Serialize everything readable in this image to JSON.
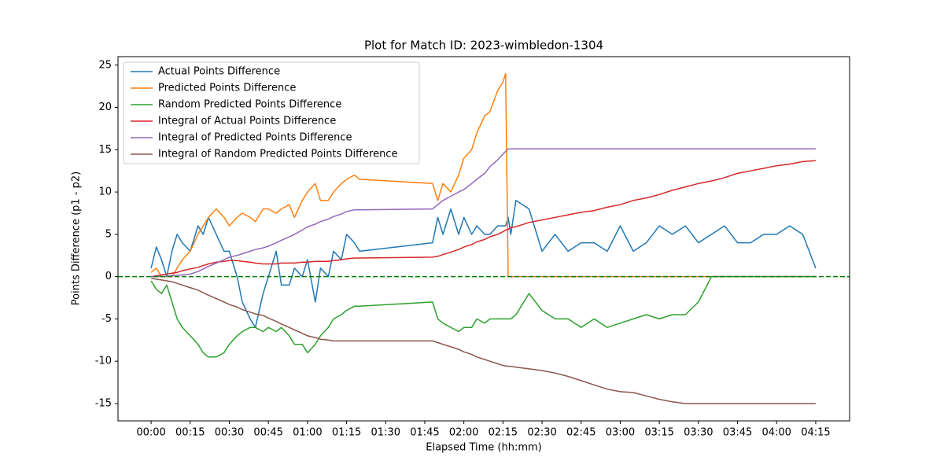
{
  "chart_data": {
    "type": "line",
    "title": "Plot for Match ID: 2023-wimbledon-1304",
    "x_label": "Elapsed Time (hh:mm)",
    "y_label": "Points Difference (p1 - p2)",
    "x": [
      0,
      2,
      4,
      6,
      8,
      10,
      12,
      15,
      18,
      20,
      22,
      25,
      28,
      30,
      33,
      35,
      38,
      40,
      43,
      45,
      48,
      50,
      53,
      55,
      58,
      60,
      63,
      65,
      68,
      70,
      73,
      75,
      78,
      80,
      108,
      110,
      112,
      115,
      118,
      120,
      123,
      125,
      128,
      130,
      133,
      135,
      136,
      137,
      138,
      140,
      145,
      150,
      155,
      160,
      165,
      170,
      175,
      180,
      185,
      190,
      195,
      200,
      205,
      210,
      215,
      220,
      225,
      230,
      235,
      240,
      245,
      250,
      255
    ],
    "series": [
      {
        "name": "Actual Points Difference",
        "color": "#1f77b4",
        "values": [
          1,
          3.5,
          2,
          0,
          3,
          5,
          4,
          3,
          6,
          5,
          7,
          5,
          3,
          3,
          0,
          -3,
          -5,
          -6,
          -2,
          0,
          3,
          -1,
          -1,
          1,
          0,
          2,
          -3,
          1,
          0,
          3,
          2,
          5,
          4,
          3,
          4,
          7,
          5,
          8,
          5,
          7,
          5,
          6,
          5,
          5,
          6,
          6,
          6,
          7,
          5,
          9,
          8,
          3,
          5,
          3,
          4,
          4,
          3,
          6,
          3,
          4,
          6,
          5,
          6,
          4,
          5,
          6,
          4,
          4,
          5,
          5,
          6,
          5,
          1
        ]
      },
      {
        "name": "Predicted Points Difference",
        "color": "#ff7f0e",
        "values": [
          0.5,
          1,
          0,
          0,
          0,
          1,
          2,
          3,
          5,
          6,
          7,
          8,
          7,
          6,
          7,
          7.5,
          7,
          6.5,
          8,
          8,
          7.5,
          8,
          8.5,
          7,
          9,
          10,
          11,
          9,
          9,
          10,
          11,
          11.5,
          12,
          11.5,
          11,
          9,
          11,
          10,
          12,
          14,
          15,
          17,
          19,
          19.5,
          22,
          23,
          24,
          0,
          0,
          0,
          0,
          0,
          0,
          0,
          0,
          0,
          0,
          0,
          0,
          0,
          0,
          0,
          0,
          0,
          0,
          0,
          0,
          0,
          0,
          0,
          0,
          0,
          0
        ]
      },
      {
        "name": "Random Predicted Points Difference",
        "color": "#2ca02c",
        "values": [
          -0.5,
          -1.5,
          -2,
          -1,
          -3,
          -5,
          -6,
          -7,
          -8,
          -9,
          -9.5,
          -9.5,
          -9,
          -8,
          -7,
          -6.5,
          -6,
          -6,
          -6.5,
          -6,
          -6.5,
          -6,
          -7,
          -8,
          -8,
          -9,
          -8,
          -7,
          -6,
          -5,
          -4.5,
          -4,
          -3.5,
          -3.5,
          -3,
          -5,
          -5.5,
          -6,
          -6.5,
          -6,
          -6,
          -5,
          -5.5,
          -5,
          -5,
          -5,
          -5,
          -5,
          -5,
          -4.5,
          -2,
          -4,
          -5,
          -5,
          -6,
          -5,
          -6,
          -5.5,
          -5,
          -4.5,
          -5,
          -4.5,
          -4.5,
          -3,
          0,
          0,
          0,
          0,
          0,
          0,
          0,
          0,
          0
        ]
      },
      {
        "name": "Integral of Actual Points Difference",
        "color": "#d62728",
        "values": [
          0,
          0.1,
          0.2,
          0.3,
          0.4,
          0.5,
          0.7,
          0.9,
          1.1,
          1.3,
          1.5,
          1.7,
          1.8,
          1.9,
          1.9,
          1.8,
          1.7,
          1.6,
          1.5,
          1.5,
          1.5,
          1.6,
          1.6,
          1.6,
          1.7,
          1.7,
          1.8,
          1.8,
          1.8,
          1.9,
          2,
          2.1,
          2.2,
          2.2,
          2.3,
          2.4,
          2.6,
          2.9,
          3.2,
          3.5,
          3.8,
          4.1,
          4.4,
          4.7,
          5,
          5.3,
          5.5,
          5.6,
          5.8,
          5.9,
          6.4,
          6.7,
          7,
          7.3,
          7.6,
          7.8,
          8.2,
          8.5,
          9,
          9.3,
          9.7,
          10.2,
          10.6,
          11,
          11.3,
          11.7,
          12.2,
          12.5,
          12.8,
          13.1,
          13.3,
          13.6,
          13.7
        ]
      },
      {
        "name": "Integral of Predicted Points Difference",
        "color": "#9467bd",
        "values": [
          0,
          0,
          0,
          0.05,
          0.1,
          0.15,
          0.2,
          0.3,
          0.6,
          0.9,
          1.2,
          1.6,
          2,
          2.3,
          2.5,
          2.7,
          3,
          3.2,
          3.4,
          3.6,
          4,
          4.3,
          4.7,
          5,
          5.5,
          5.9,
          6.2,
          6.5,
          6.8,
          7.1,
          7.4,
          7.7,
          7.9,
          7.9,
          8,
          8.5,
          9,
          9.5,
          10,
          10.3,
          11,
          11.5,
          12.2,
          13,
          13.8,
          14.5,
          14.8,
          15.1,
          15.1,
          15.1,
          15.1,
          15.1,
          15.1,
          15.1,
          15.1,
          15.1,
          15.1,
          15.1,
          15.1,
          15.1,
          15.1,
          15.1,
          15.1,
          15.1,
          15.1,
          15.1,
          15.1,
          15.1,
          15.1,
          15.1,
          15.1,
          15.1,
          15.1
        ]
      },
      {
        "name": "Integral of Random Predicted Points Difference",
        "color": "#8c564b",
        "values": [
          -0.2,
          -0.3,
          -0.4,
          -0.5,
          -0.6,
          -0.8,
          -1,
          -1.3,
          -1.6,
          -1.9,
          -2.2,
          -2.6,
          -3,
          -3.3,
          -3.6,
          -3.9,
          -4.2,
          -4.4,
          -4.6,
          -4.9,
          -5.3,
          -5.6,
          -6,
          -6.3,
          -6.7,
          -7,
          -7.2,
          -7.4,
          -7.5,
          -7.6,
          -7.6,
          -7.6,
          -7.6,
          -7.6,
          -7.6,
          -7.8,
          -8,
          -8.3,
          -8.6,
          -8.9,
          -9.2,
          -9.5,
          -9.8,
          -10,
          -10.3,
          -10.5,
          -10.55,
          -10.6,
          -10.6,
          -10.7,
          -10.9,
          -11.1,
          -11.4,
          -11.8,
          -12.3,
          -12.8,
          -13.3,
          -13.6,
          -13.7,
          -14.1,
          -14.5,
          -14.8,
          -15,
          -15,
          -15,
          -15,
          -15,
          -15,
          -15,
          -15,
          -15,
          -15,
          -15
        ]
      }
    ],
    "reference_line": {
      "value": 0,
      "color": "green",
      "style": "dashed"
    },
    "xlim": [
      -12.7,
      268
    ],
    "ylim": [
      -17.05,
      26.0
    ],
    "xticks": [
      {
        "value": 0,
        "label": "00:00"
      },
      {
        "value": 15,
        "label": "00:15"
      },
      {
        "value": 30,
        "label": "00:30"
      },
      {
        "value": 45,
        "label": "00:45"
      },
      {
        "value": 60,
        "label": "01:00"
      },
      {
        "value": 75,
        "label": "01:15"
      },
      {
        "value": 90,
        "label": "01:30"
      },
      {
        "value": 105,
        "label": "01:45"
      },
      {
        "value": 120,
        "label": "02:00"
      },
      {
        "value": 135,
        "label": "02:15"
      },
      {
        "value": 150,
        "label": "02:30"
      },
      {
        "value": 165,
        "label": "02:45"
      },
      {
        "value": 180,
        "label": "03:00"
      },
      {
        "value": 195,
        "label": "03:15"
      },
      {
        "value": 210,
        "label": "03:30"
      },
      {
        "value": 225,
        "label": "03:45"
      },
      {
        "value": 240,
        "label": "04:00"
      },
      {
        "value": 255,
        "label": "04:15"
      }
    ],
    "yticks": [
      -15,
      -10,
      -5,
      0,
      5,
      10,
      15,
      20,
      25
    ],
    "legend": "upper left",
    "grid": false
  }
}
